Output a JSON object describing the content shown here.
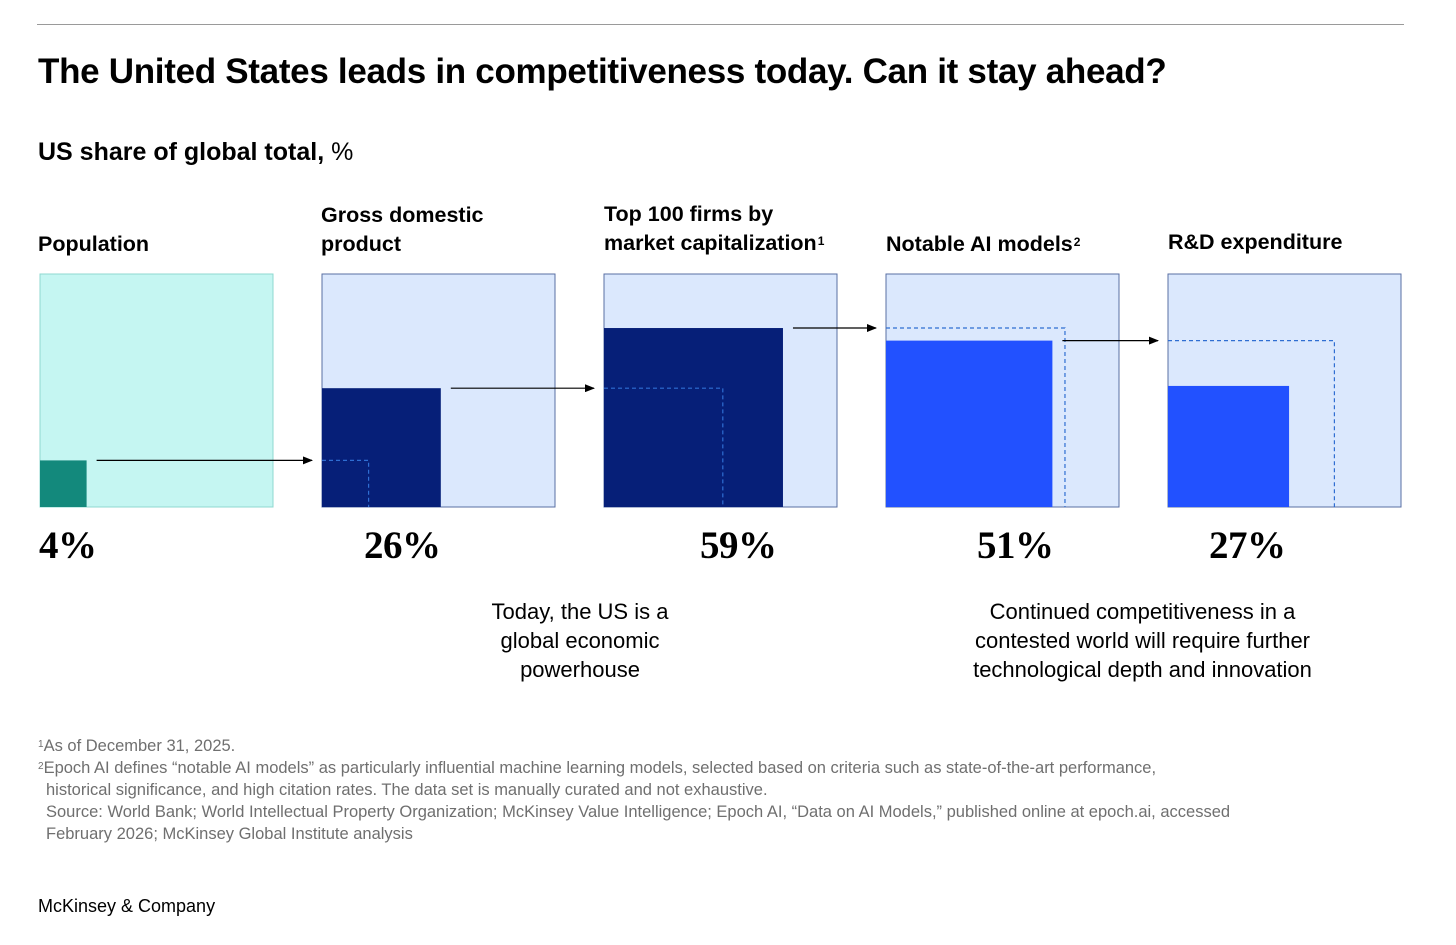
{
  "title": "The United States leads in competitiveness today. Can it stay ahead?",
  "subtitle": {
    "bold": "US share of global total,",
    "unit": "%"
  },
  "colors": {
    "population_bg": "#c5f6f2",
    "population_fill": "#13897c",
    "panel_bg": "#dbe8fd",
    "navy": "#061f78",
    "blue": "#2251ff",
    "border": "#5a6fa3",
    "dashed": "#2f6ed2"
  },
  "chart_data": {
    "type": "area-square comparison",
    "title": "US share of global total, %",
    "panels": [
      {
        "name": "population",
        "label_lines": [
          "Population"
        ],
        "footnote_ref": "",
        "value": 4,
        "display": "4%"
      },
      {
        "name": "gdp",
        "label_lines": [
          "Gross domestic",
          "product"
        ],
        "footnote_ref": "",
        "value": 26,
        "display": "26%"
      },
      {
        "name": "top100",
        "label_lines": [
          "Top 100 firms by",
          "market capitalization"
        ],
        "footnote_ref": "1",
        "value": 59,
        "display": "59%"
      },
      {
        "name": "ai-models",
        "label_lines": [
          "Notable AI models"
        ],
        "footnote_ref": "2",
        "value": 51,
        "display": "51%"
      },
      {
        "name": "rnd",
        "label_lines": [
          "R&D expenditure"
        ],
        "footnote_ref": "",
        "value": 27,
        "display": "27%"
      }
    ]
  },
  "notes": {
    "left": [
      "Today, the US is a",
      "global economic",
      "powerhouse"
    ],
    "right": [
      "Continued competitiveness in a",
      "contested world will require further",
      "technological depth and innovation"
    ]
  },
  "footnotes": {
    "f1_sup": "1",
    "f1": "As of December 31, 2025.",
    "f2_sup": "2",
    "f2a": "Epoch AI defines “notable AI models” as particularly influential machine learning models, selected based on criteria such as state-of-the-art performance,",
    "f2b": "historical significance, and high citation rates. The data set is manually curated and not exhaustive.",
    "source_a": "Source: World Bank; World Intellectual Property Organization; McKinsey Value Intelligence; Epoch AI, “Data on AI Models,” published online at epoch.ai, accessed",
    "source_b": "February 2026; McKinsey Global Institute analysis"
  },
  "brand": "McKinsey & Company"
}
